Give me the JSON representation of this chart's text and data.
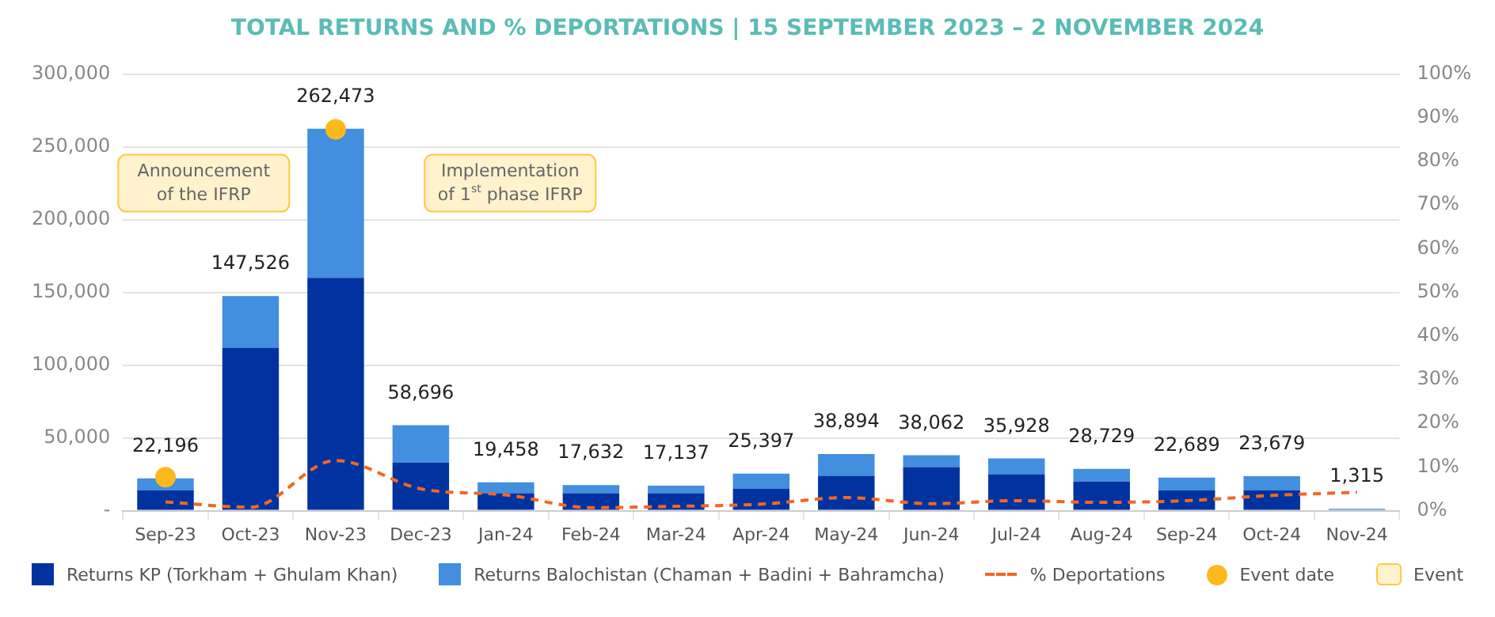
{
  "chart_data": {
    "type": "bar",
    "title": "TOTAL RETURNS AND % DEPORTATIONS | 15 SEPTEMBER 2023 – 2 NOVEMBER 2024",
    "categories": [
      "Sep-23",
      "Oct-23",
      "Nov-23",
      "Dec-23",
      "Jan-24",
      "Feb-24",
      "Mar-24",
      "Apr-24",
      "May-24",
      "Jun-24",
      "Jul-24",
      "Aug-24",
      "Sep-24",
      "Oct-24",
      "Nov-24"
    ],
    "stacked": true,
    "series": [
      {
        "name": "Returns KP (Torkham + Ghulam Khan)",
        "color": "#0033a0",
        "values": [
          14000,
          112000,
          160000,
          33000,
          12000,
          12000,
          12000,
          15000,
          24000,
          30000,
          25000,
          20000,
          14000,
          14000,
          700
        ]
      },
      {
        "name": "Returns Balochistan (Chaman + Badini + Bahramcha)",
        "color": "#418fde",
        "values": [
          8196,
          35526,
          102473,
          25696,
          7458,
          5632,
          5137,
          10397,
          14894,
          8062,
          10928,
          8729,
          8689,
          9679,
          615
        ]
      },
      {
        "name": "% Deportations",
        "type": "line",
        "axis": "y2",
        "color": "#f26722",
        "line_style": "dashed",
        "marker": "none",
        "values": [
          2.0,
          0.8,
          11.5,
          5.0,
          3.6,
          0.7,
          1.0,
          1.5,
          3.0,
          1.6,
          2.3,
          1.9,
          2.3,
          3.5,
          4.2
        ]
      },
      {
        "name": "Event date",
        "type": "scatter",
        "color": "#ffb81c",
        "marker": "circle",
        "x": [
          "Sep-23",
          "Nov-23"
        ],
        "values": [
          23000,
          262000
        ]
      }
    ],
    "totals": [
      "22,196",
      "147,526",
      "262,473",
      "58,696",
      "19,458",
      "17,632",
      "17,137",
      "25,397",
      "38,894",
      "38,062",
      "35,928",
      "28,729",
      "22,689",
      "23,679",
      "1,315"
    ],
    "ylim": [
      0,
      300000
    ],
    "yticks": [
      {
        "value": 0,
        "label": "-"
      },
      {
        "value": 50000,
        "label": "50,000"
      },
      {
        "value": 100000,
        "label": "100,000"
      },
      {
        "value": 150000,
        "label": "150,000"
      },
      {
        "value": 200000,
        "label": "200,000"
      },
      {
        "value": 250000,
        "label": "250,000"
      },
      {
        "value": 300000,
        "label": "300,000"
      }
    ],
    "y2lim": [
      0,
      100
    ],
    "y2ticks": [
      {
        "value": 0,
        "label": "0%"
      },
      {
        "value": 10,
        "label": "10%"
      },
      {
        "value": 20,
        "label": "20%"
      },
      {
        "value": 30,
        "label": "30%"
      },
      {
        "value": 40,
        "label": "40%"
      },
      {
        "value": 50,
        "label": "50%"
      },
      {
        "value": 60,
        "label": "60%"
      },
      {
        "value": 70,
        "label": "70%"
      },
      {
        "value": 80,
        "label": "80%"
      },
      {
        "value": 90,
        "label": "90%"
      },
      {
        "value": 100,
        "label": "100%"
      }
    ],
    "annotations": [
      "Announcement of the IFRP",
      "Implementation of 1$^{st}$ phase IFRP",
      "Event"
    ],
    "grid": "y",
    "legend": "bottom"
  }
}
